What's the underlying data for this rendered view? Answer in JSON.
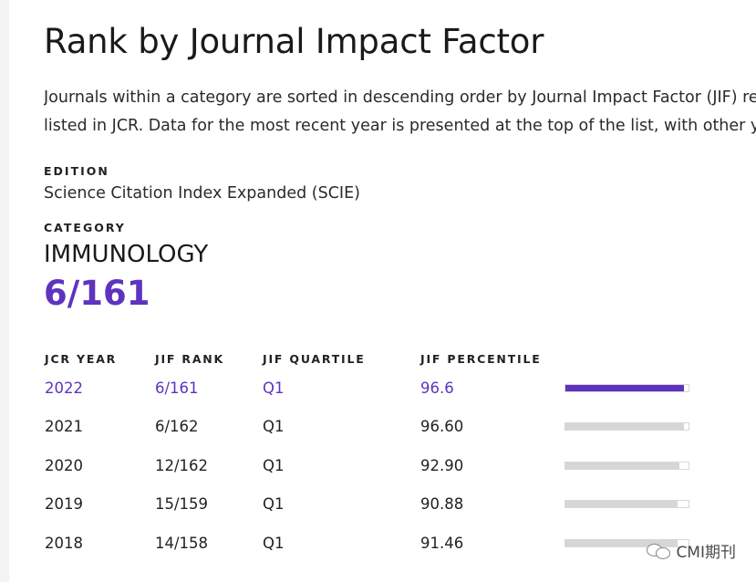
{
  "page": {
    "title": "Rank by Journal Impact Factor",
    "description_line1": "Journals within a category are sorted in descending order by Journal Impact Factor (JIF) res",
    "description_line2": "listed in JCR. Data for the most recent year is presented at the top of the list, with other year"
  },
  "edition": {
    "label": "EDITION",
    "value": "Science Citation Index Expanded (SCIE)"
  },
  "category": {
    "label": "CATEGORY",
    "value": "IMMUNOLOGY",
    "rank": "6/161"
  },
  "table": {
    "headers": {
      "year": "JCR YEAR",
      "rank": "JIF RANK",
      "quartile": "JIF QUARTILE",
      "percentile": "JIF PERCENTILE"
    },
    "rows": [
      {
        "year": "2022",
        "rank": "6/161",
        "quartile": "Q1",
        "percentile": "96.6",
        "percentile_value": 96.6,
        "highlight": true
      },
      {
        "year": "2021",
        "rank": "6/162",
        "quartile": "Q1",
        "percentile": "96.60",
        "percentile_value": 96.6,
        "highlight": false
      },
      {
        "year": "2020",
        "rank": "12/162",
        "quartile": "Q1",
        "percentile": "92.90",
        "percentile_value": 92.9,
        "highlight": false
      },
      {
        "year": "2019",
        "rank": "15/159",
        "quartile": "Q1",
        "percentile": "90.88",
        "percentile_value": 90.88,
        "highlight": false
      },
      {
        "year": "2018",
        "rank": "14/158",
        "quartile": "Q1",
        "percentile": "91.46",
        "percentile_value": 91.46,
        "highlight": false
      }
    ]
  },
  "watermark": {
    "text": "CMI期刊",
    "icon": "wechat-icon"
  },
  "colors": {
    "accent": "#5e33bf",
    "bar_track": "#d6d6d6"
  }
}
